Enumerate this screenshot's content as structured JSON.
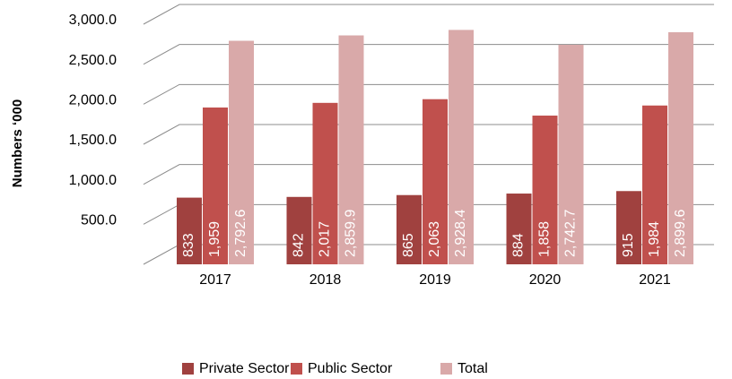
{
  "chart_data": {
    "type": "bar",
    "y_label": "Numbers ‘000",
    "categories": [
      "2017",
      "2018",
      "2019",
      "2020",
      "2021"
    ],
    "series": [
      {
        "name": "Private Sector",
        "color": "#a0413f",
        "values": [
          833,
          842,
          865,
          884,
          915
        ],
        "value_labels": [
          "833",
          "842",
          "865",
          "884",
          "915"
        ]
      },
      {
        "name": "Public Sector",
        "color": "#c0504d",
        "values": [
          1959,
          2017,
          2063,
          1858,
          1984
        ],
        "value_labels": [
          "1,959",
          "2,017",
          "2,063",
          "1,858",
          "1,984"
        ]
      },
      {
        "name": "Total",
        "color": "#d9a9a9",
        "values": [
          2792.6,
          2859.9,
          2928.4,
          2742.7,
          2899.6
        ],
        "value_labels": [
          "2,792.6",
          "2,859.9",
          "2,928.4",
          "2,742.7",
          "2,899.6"
        ]
      }
    ],
    "ylim": [
      0,
      3000
    ],
    "yticks": [
      {
        "value": 500,
        "label": "500.0"
      },
      {
        "value": 1000,
        "label": "1,000.0"
      },
      {
        "value": 1500,
        "label": "1,500.0"
      },
      {
        "value": 2000,
        "label": "2,000.0"
      },
      {
        "value": 2500,
        "label": "2,500.0"
      },
      {
        "value": 3000,
        "label": "3,000.0"
      }
    ],
    "grid": true,
    "legend": "bottom"
  }
}
